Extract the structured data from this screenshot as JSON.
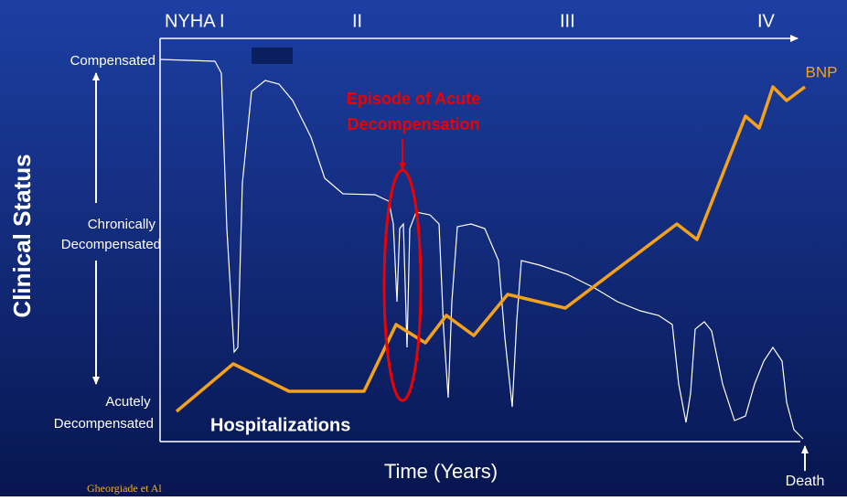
{
  "header": {
    "stages": [
      "NYHA I",
      "II",
      "III",
      "IV"
    ]
  },
  "y_axis": {
    "title": "Clinical Status",
    "top": "Compensated",
    "middle": [
      "Chronically",
      "Decompensated"
    ],
    "bottom": [
      "Acutely",
      "Decompensated"
    ]
  },
  "annotations": {
    "episode": [
      "Episode of Acute",
      "Decompensation"
    ],
    "bnp": "BNP",
    "hospitalizations": "Hospitalizations",
    "death": "Death"
  },
  "x_axis": {
    "title": "Time (Years)"
  },
  "source": "Gheorgiade et Al"
}
